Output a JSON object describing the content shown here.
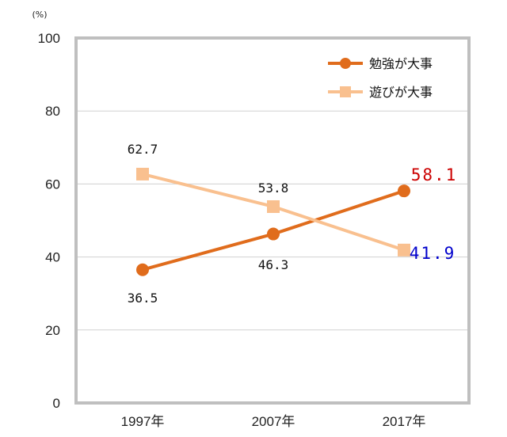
{
  "chart_data": {
    "type": "line",
    "unit_label": "(%)",
    "categories": [
      "1997年",
      "2007年",
      "2017年"
    ],
    "y_ticks": [
      "0",
      "20",
      "40",
      "60",
      "80",
      "100"
    ],
    "ylim": [
      0,
      100
    ],
    "grid": true,
    "legend_position": "top-right",
    "series": [
      {
        "name": "勉強が大事",
        "values": [
          36.5,
          46.3,
          58.1
        ],
        "labels": [
          "36.5",
          "46.3",
          "58.1"
        ],
        "color": "#e06c1c",
        "marker": "circle",
        "last_label_color": "#cc0000"
      },
      {
        "name": "遊びが大事",
        "values": [
          62.7,
          53.8,
          41.9
        ],
        "labels": [
          "62.7",
          "53.8",
          "41.9"
        ],
        "color": "#f9c08f",
        "marker": "square",
        "last_label_color": "#0000cc"
      }
    ],
    "frame_color": "#bfbfbf",
    "grid_color": "#d0d0d0"
  }
}
